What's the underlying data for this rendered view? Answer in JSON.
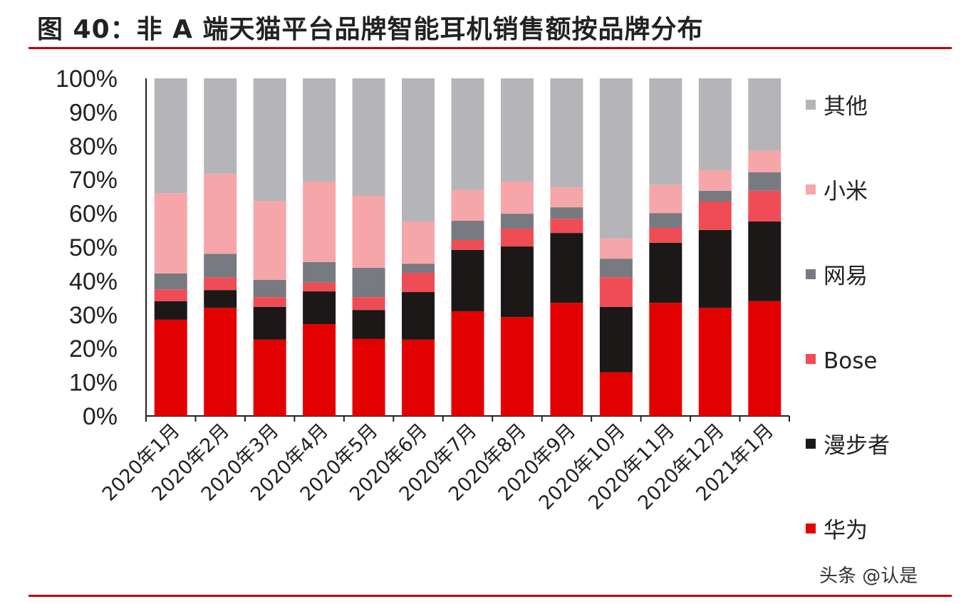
{
  "title": "图 40：非 A 端天猫平台品牌智能耳机销售额按品牌分布",
  "watermark": "头条 @认是",
  "chart_data": {
    "type": "bar",
    "stacked": true,
    "percent": true,
    "categories": [
      "2020年1月",
      "2020年2月",
      "2020年3月",
      "2020年4月",
      "2020年5月",
      "2020年6月",
      "2020年7月",
      "2020年8月",
      "2020年9月",
      "2020年10月",
      "2020年11月",
      "2020年12月",
      "2021年1月"
    ],
    "series": [
      {
        "name": "华为",
        "color": "#e30000",
        "values": [
          28.5,
          32.0,
          22.6,
          27.2,
          22.8,
          22.6,
          31.0,
          29.3,
          33.5,
          12.9,
          33.5,
          32.0,
          34.0
        ]
      },
      {
        "name": "漫步者",
        "color": "#1c1818",
        "values": [
          5.5,
          5.3,
          9.7,
          9.7,
          8.6,
          14.1,
          18.2,
          20.9,
          20.7,
          19.4,
          17.8,
          23.1,
          23.6
        ]
      },
      {
        "name": "Bose",
        "color": "#f04c55",
        "values": [
          3.5,
          3.7,
          2.9,
          2.6,
          3.8,
          5.7,
          2.9,
          5.3,
          4.2,
          8.8,
          4.4,
          8.4,
          9.1
        ]
      },
      {
        "name": "网易",
        "color": "#777a80",
        "values": [
          4.7,
          7.0,
          5.1,
          6.1,
          8.7,
          2.7,
          5.7,
          4.4,
          3.4,
          5.5,
          4.4,
          3.2,
          5.5
        ]
      },
      {
        "name": "小米",
        "color": "#f6a6a8",
        "values": [
          23.8,
          23.7,
          23.4,
          23.8,
          21.3,
          12.5,
          9.1,
          9.5,
          5.9,
          5.9,
          8.3,
          6.1,
          6.3
        ]
      },
      {
        "name": "其他",
        "color": "#b5b5b9",
        "values": [
          34.0,
          28.3,
          36.3,
          30.6,
          34.8,
          42.4,
          33.1,
          30.6,
          32.3,
          47.5,
          31.6,
          27.2,
          21.5
        ]
      }
    ],
    "legend_order": [
      "其他",
      "小米",
      "网易",
      "Bose",
      "漫步者",
      "华为"
    ],
    "yticks": [
      "0%",
      "10%",
      "20%",
      "30%",
      "40%",
      "50%",
      "60%",
      "70%",
      "80%",
      "90%",
      "100%"
    ],
    "ylim": [
      0,
      100
    ],
    "legend_position": "right",
    "grid": false
  }
}
